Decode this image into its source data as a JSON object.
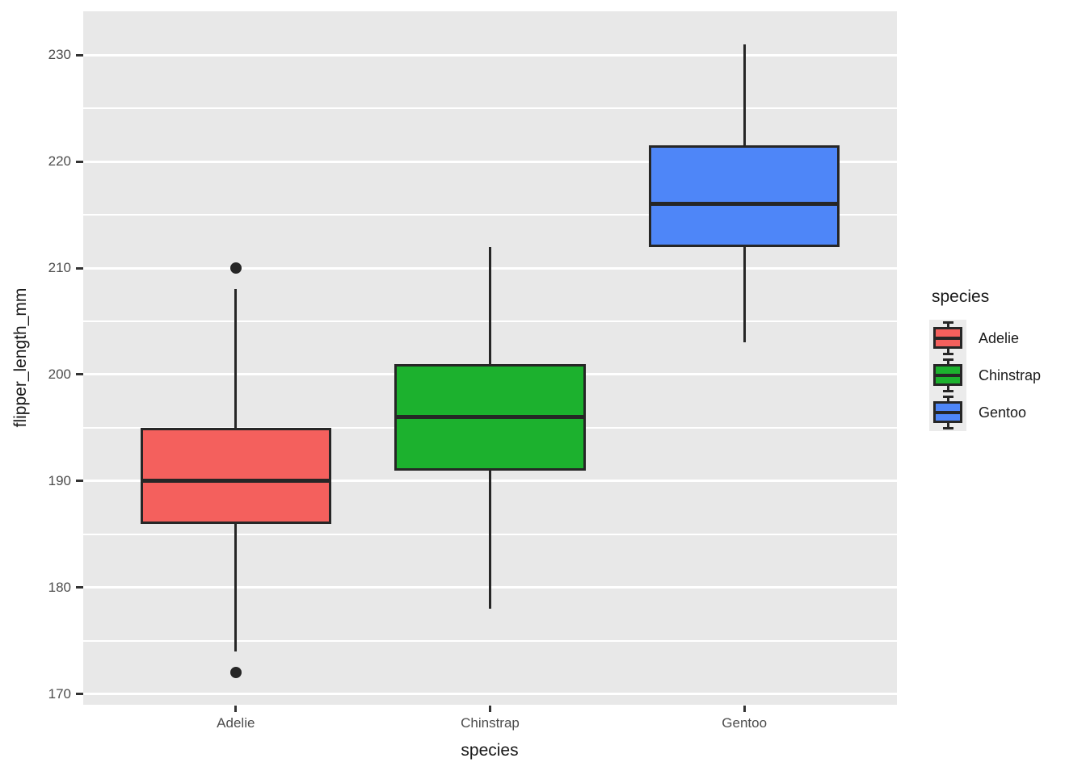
{
  "figure": {
    "background_color": "#FFFFFF",
    "panel_color": "#E8E8E8",
    "grid_color": "#FFFFFF",
    "box_stroke_color": "#262626",
    "tick_label_color": "#4D4D4D",
    "axis_title_color": "#1A1A1A"
  },
  "x_axis": {
    "title": "species",
    "tick_labels": [
      "Adelie",
      "Chinstrap",
      "Gentoo"
    ]
  },
  "y_axis": {
    "title": "flipper_length_mm",
    "tick_labels": [
      "170",
      "180",
      "190",
      "200",
      "210",
      "220",
      "230"
    ]
  },
  "legend": {
    "title": "species",
    "entries": [
      {
        "label": "Adelie",
        "color": "#F4605D"
      },
      {
        "label": "Chinstrap",
        "color": "#1CB12E"
      },
      {
        "label": "Gentoo",
        "color": "#4E86F8"
      }
    ]
  },
  "chart_data": {
    "type": "boxplot",
    "title": "",
    "xlabel": "species",
    "ylabel": "flipper_length_mm",
    "categories": [
      "Adelie",
      "Chinstrap",
      "Gentoo"
    ],
    "series": [
      {
        "name": "Adelie",
        "color": "#F4605D",
        "whisker_low": 174,
        "q1": 186,
        "median": 190,
        "q3": 195,
        "whisker_high": 208,
        "outliers": [
          210,
          172
        ]
      },
      {
        "name": "Chinstrap",
        "color": "#1CB12E",
        "whisker_low": 178,
        "q1": 191,
        "median": 196,
        "q3": 201,
        "whisker_high": 212,
        "outliers": []
      },
      {
        "name": "Gentoo",
        "color": "#4E86F8",
        "whisker_low": 203,
        "q1": 212,
        "median": 216,
        "q3": 221.5,
        "whisker_high": 231,
        "outliers": []
      }
    ],
    "y_ticks": [
      170,
      180,
      190,
      200,
      210,
      220,
      230
    ],
    "y_minor_ticks": [
      175,
      185,
      195,
      205,
      215,
      225
    ],
    "ylim": [
      169.0,
      234.1
    ],
    "grid": true,
    "legend_position": "right",
    "legend_title": "species"
  }
}
